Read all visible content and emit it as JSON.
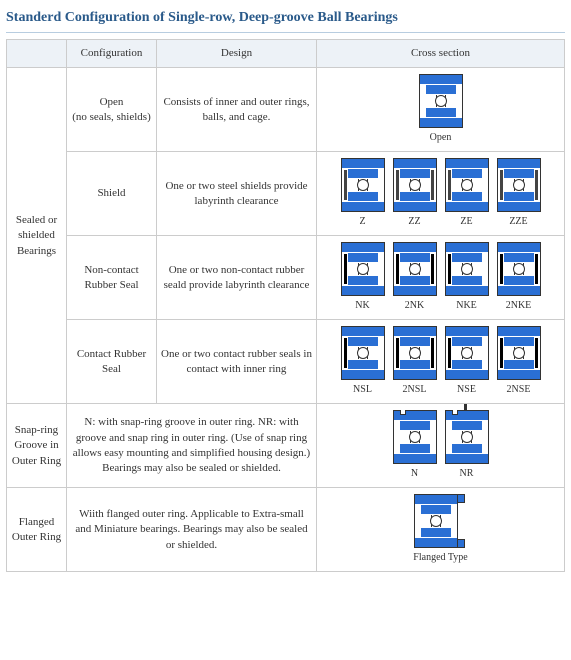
{
  "title": "Standerd Configuration of Single-row, Deep-groove Ball Bearings",
  "headers": {
    "cat": "",
    "config": "Configuration",
    "design": "Design",
    "cross": "Cross section"
  },
  "group1": {
    "label": "Sealed or shielded Bearings"
  },
  "rows": {
    "open": {
      "config_l1": "Open",
      "config_l2": "(no seals, shields)",
      "design": "Consists of inner and outer rings, balls, and cage.",
      "labels": [
        "Open"
      ]
    },
    "shield": {
      "config": "Shield",
      "design": "One or two steel shields provide labyrinth clearance",
      "labels": [
        "Z",
        "ZZ",
        "ZE",
        "ZZE"
      ]
    },
    "noncontact": {
      "config_l1": "Non-contact",
      "config_l2": "Rubber Seal",
      "design": "One or two non-contact rubber seald provide labyrinth clearance",
      "labels": [
        "NK",
        "2NK",
        "NKE",
        "2NKE"
      ]
    },
    "contact": {
      "config_l1": "Contact Rubber",
      "config_l2": "Seal",
      "design": "One or two contact rubber seals in contact with inner ring",
      "labels": [
        "NSL",
        "2NSL",
        "NSE",
        "2NSE"
      ]
    },
    "snap": {
      "cat_l1": "Snap-ring Groove in Outer Ring",
      "design": "N: with snap-ring groove in outer ring. NR: with groove and snap ring in outer ring. (Use of snap ring allows easy mounting and simplified housing design.) Bearings may also be sealed or shielded.",
      "labels": [
        "N",
        "NR"
      ]
    },
    "flange": {
      "cat_l1": "Flanged Outer Ring",
      "design": "Wiith flanged outer ring. Applicable to Extra-small and Miniature bearings. Bearings may also be sealed or shielded.",
      "labels": [
        "Flanged Type"
      ]
    }
  },
  "colors": {
    "header_bg": "#edf2f7",
    "border": "#cccccc",
    "title": "#2a5a8a",
    "bearing_blue": "#2a6fd4"
  }
}
